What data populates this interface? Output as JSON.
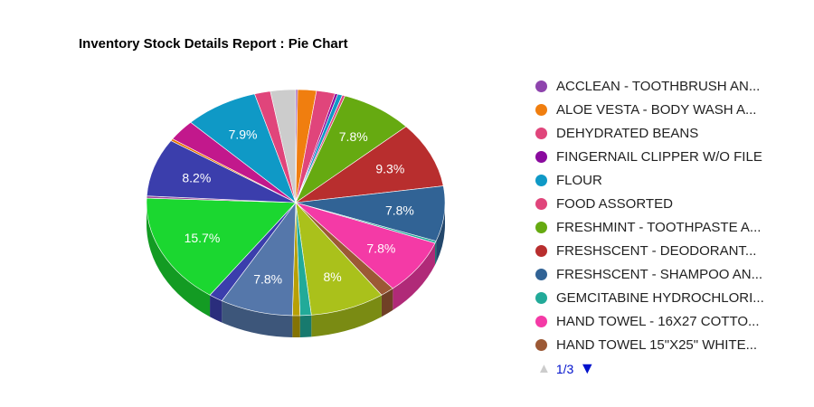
{
  "chart_data": {
    "type": "pie",
    "title": "Inventory Stock Details Report : Pie Chart",
    "style": "3d",
    "slices": [
      {
        "label": "ACCLEAN - TOOTHBRUSH AN...",
        "value": 0.2,
        "color": "#8e44ad",
        "shown_label": ""
      },
      {
        "label": "ALOE VESTA - BODY WASH A...",
        "value": 2.0,
        "color": "#f07e0f",
        "shown_label": ""
      },
      {
        "label": "DEHYDRATED BEANS",
        "value": 2.0,
        "color": "#e0457b",
        "shown_label": ""
      },
      {
        "label": "FINGERNAIL CLIPPER W/O FILE",
        "value": 0.3,
        "color": "#8a0a9e",
        "shown_label": ""
      },
      {
        "label": "FLOUR",
        "value": 0.5,
        "color": "#0f99c6",
        "shown_label": ""
      },
      {
        "label": "FOOD ASSORTED",
        "value": 0.3,
        "color": "#e0457b",
        "shown_label": ""
      },
      {
        "label": "FRESHMINT - TOOTHPASTE A...",
        "value": 7.8,
        "color": "#66aa11",
        "shown_label": "7.8%"
      },
      {
        "label": "FRESHSCENT - DEODORANT...",
        "value": 9.3,
        "color": "#b82e2e",
        "shown_label": "9.3%"
      },
      {
        "label": "FRESHSCENT - SHAMPOO AN...",
        "value": 7.8,
        "color": "#316395",
        "shown_label": "7.8%"
      },
      {
        "label": "GEMCITABINE HYDROCHLORI...",
        "value": 0.3,
        "color": "#22aa99",
        "shown_label": ""
      },
      {
        "label": "HAND TOWEL - 16X27 COTTO...",
        "value": 7.8,
        "color": "#f43aa6",
        "shown_label": "7.8%"
      },
      {
        "label": "HAND TOWEL 15\"X25\" WHITE...",
        "value": 1.5,
        "color": "#9c5935",
        "shown_label": ""
      },
      {
        "label": "",
        "value": 8.0,
        "color": "#aac11b",
        "shown_label": "8%"
      },
      {
        "label": "",
        "value": 1.2,
        "color": "#22aa99",
        "shown_label": ""
      },
      {
        "label": "",
        "value": 0.8,
        "color": "#b8a004",
        "shown_label": ""
      },
      {
        "label": "",
        "value": 7.8,
        "color": "#5577aa",
        "shown_label": "7.8%"
      },
      {
        "label": "",
        "value": 1.5,
        "color": "#3b3eac",
        "shown_label": ""
      },
      {
        "label": "",
        "value": 15.7,
        "color": "#1bd730",
        "shown_label": "15.7%"
      },
      {
        "label": "",
        "value": 0.3,
        "color": "#994499",
        "shown_label": ""
      },
      {
        "label": "",
        "value": 8.2,
        "color": "#3b3eac",
        "shown_label": "8.2%"
      },
      {
        "label": "",
        "value": 0.3,
        "color": "#e67300",
        "shown_label": ""
      },
      {
        "label": "",
        "value": 3.0,
        "color": "#c2188c",
        "shown_label": ""
      },
      {
        "label": "",
        "value": 7.9,
        "color": "#0f99c6",
        "shown_label": "7.9%"
      },
      {
        "label": "",
        "value": 1.7,
        "color": "#e0457b",
        "shown_label": ""
      },
      {
        "label": "",
        "value": 2.7,
        "color": "#cccccc",
        "shown_label": ""
      }
    ],
    "legend_position": "right",
    "legend_page": "1/3"
  }
}
